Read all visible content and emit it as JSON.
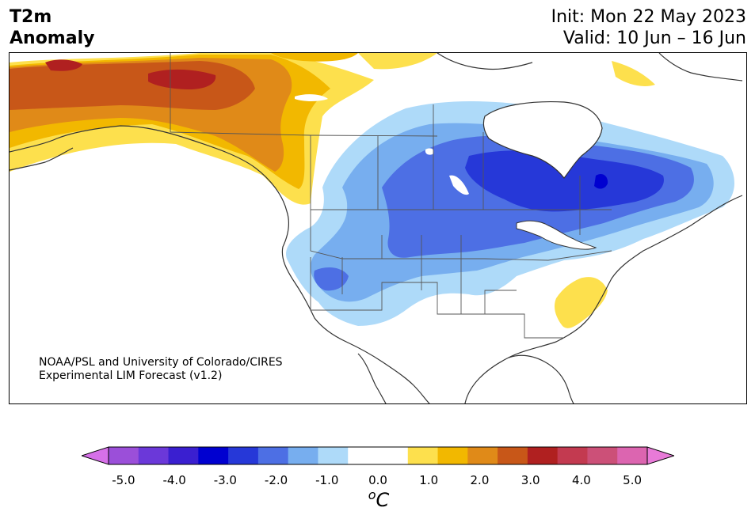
{
  "header": {
    "title_line1": "T2m",
    "title_line2": "Anomaly",
    "init_text": "Init: Mon 22 May 2023",
    "valid_text": "Valid: 10 Jun – 16 Jun"
  },
  "credit": {
    "line1": "NOAA/PSL and University of Colorado/CIRES",
    "line2": "Experimental LIM Forecast (v1.2)"
  },
  "colorbar": {
    "unit_label": "oC",
    "tick_labels": [
      "-5.0",
      "-4.0",
      "-3.0",
      "-2.0",
      "-1.0",
      "0.0",
      "1.0",
      "2.0",
      "3.0",
      "4.0",
      "5.0"
    ],
    "colors": [
      "#d670e8",
      "#9b4fd9",
      "#6b38d9",
      "#3a1fd0",
      "#0000d0",
      "#2638d8",
      "#4d6fe4",
      "#77aeef",
      "#aedaf9",
      "#ffffff",
      "#ffffff",
      "#fde04d",
      "#f2b800",
      "#e08a18",
      "#c85718",
      "#b02020",
      "#c33a50",
      "#cc5078",
      "#dc65b0",
      "#e87ad8"
    ]
  },
  "map": {
    "region": "North America",
    "anomaly_colors": {
      "cold_1": "#aedaf9",
      "cold_2": "#77aeef",
      "cold_3": "#4d6fe4",
      "cold_4": "#2638d8",
      "cold_5": "#0000d0",
      "warm_1": "#fde04d",
      "warm_2": "#f2b800",
      "warm_3": "#e08a18",
      "warm_4": "#c85718",
      "warm_5": "#b02020"
    }
  }
}
